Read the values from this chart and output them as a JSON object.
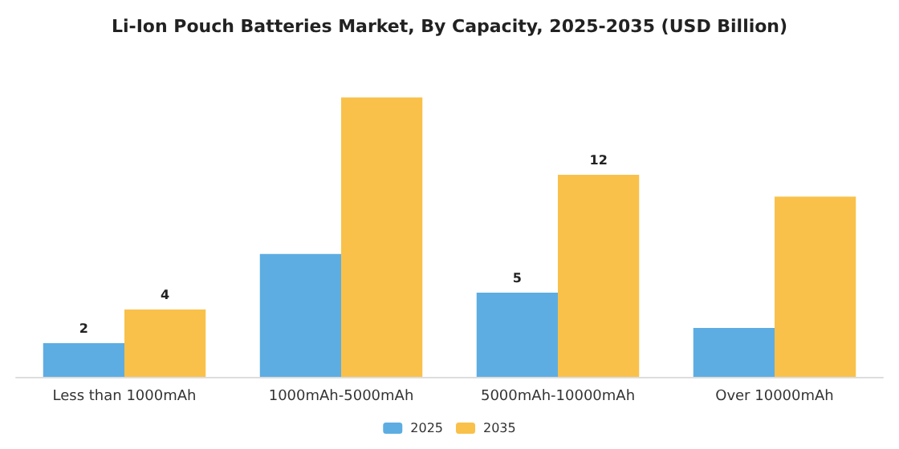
{
  "chart_data": {
    "type": "bar",
    "title": "Li-Ion Pouch Batteries Market, By Capacity, 2025-2035 (USD Billion)",
    "categories": [
      "Less than 1000mAh",
      "1000mAh-5000mAh",
      "5000mAh-10000mAh",
      "Over 10000mAh"
    ],
    "series": [
      {
        "name": "2025",
        "color": "#5dade2",
        "values": [
          2,
          7.3,
          5,
          2.9
        ],
        "value_labels": [
          "2",
          null,
          "5",
          null
        ]
      },
      {
        "name": "2035",
        "color": "#f9c14a",
        "values": [
          4,
          16.6,
          12,
          10.7
        ],
        "value_labels": [
          "4",
          null,
          "12",
          null
        ]
      }
    ],
    "legend": "bottom"
  }
}
